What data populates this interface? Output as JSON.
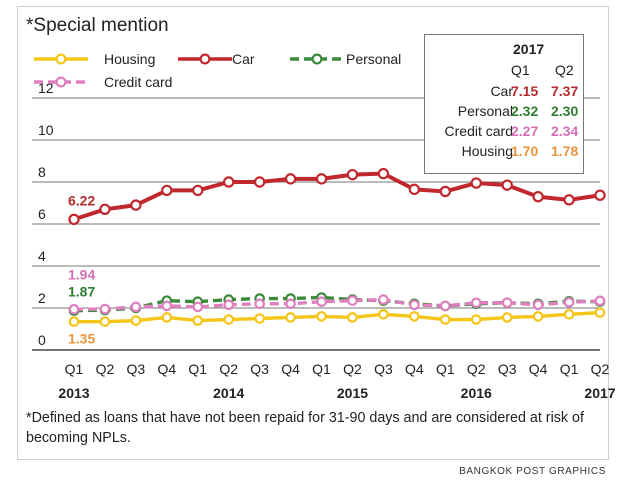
{
  "title": "*Special mention",
  "footnote": "*Defined as loans that have not been repaid for 31-90 days and are considered at risk of becoming NPLs.",
  "credit": "BANGKOK POST GRAPHICS",
  "colors": {
    "Housing": "#f5c518",
    "Car": "#c0282d",
    "Personal": "#3a8a3a",
    "Credit card": "#e07fc0"
  },
  "table": {
    "year": "2017",
    "cols": [
      "Q1",
      "Q2"
    ],
    "rows": [
      {
        "label": "Car",
        "q1": "7.15",
        "q2": "7.37",
        "color": "#b52a2e"
      },
      {
        "label": "Personal",
        "q1": "2.32",
        "q2": "2.30",
        "color": "#2e7d32"
      },
      {
        "label": "Credit card",
        "q1": "2.27",
        "q2": "2.34",
        "color": "#d66fb8"
      },
      {
        "label": "Housing",
        "q1": "1.70",
        "q2": "1.78",
        "color": "#e8963a"
      }
    ]
  },
  "chart_data": {
    "type": "line",
    "title": "*Special mention",
    "categories": [
      "Q1",
      "Q2",
      "Q3",
      "Q4",
      "Q1",
      "Q2",
      "Q3",
      "Q4",
      "Q1",
      "Q2",
      "Q3",
      "Q4",
      "Q1",
      "Q2",
      "Q3",
      "Q4",
      "Q1",
      "Q2"
    ],
    "years": [
      {
        "label": "2013",
        "index": 0
      },
      {
        "label": "2014",
        "index": 5
      },
      {
        "label": "2015",
        "index": 9
      },
      {
        "label": "2016",
        "index": 13
      },
      {
        "label": "2017",
        "index": 17
      }
    ],
    "ylim": [
      0,
      12
    ],
    "yticks": [
      "0",
      "2",
      "4",
      "6",
      "8",
      "10",
      "12"
    ],
    "grid": true,
    "legend_position": "top-left",
    "series": [
      {
        "name": "Housing",
        "color": "#f5c518",
        "style": "solid",
        "values": [
          1.35,
          1.35,
          1.4,
          1.55,
          1.4,
          1.45,
          1.5,
          1.55,
          1.6,
          1.55,
          1.7,
          1.6,
          1.45,
          1.45,
          1.55,
          1.6,
          1.7,
          1.78
        ]
      },
      {
        "name": "Car",
        "color": "#c0282d",
        "style": "solid",
        "values": [
          6.22,
          6.7,
          6.9,
          7.6,
          7.6,
          8.0,
          8.0,
          8.15,
          8.15,
          8.35,
          8.4,
          7.65,
          7.55,
          7.95,
          7.85,
          7.3,
          7.15,
          7.37
        ]
      },
      {
        "name": "Personal",
        "color": "#3a8a3a",
        "style": "dashed",
        "values": [
          1.87,
          1.9,
          2.0,
          2.35,
          2.3,
          2.4,
          2.45,
          2.45,
          2.5,
          2.4,
          2.35,
          2.2,
          2.1,
          2.2,
          2.25,
          2.2,
          2.32,
          2.3
        ]
      },
      {
        "name": "Credit card",
        "color": "#e07fc0",
        "style": "dashed",
        "values": [
          1.94,
          1.95,
          2.05,
          2.1,
          2.05,
          2.15,
          2.2,
          2.2,
          2.3,
          2.35,
          2.4,
          2.15,
          2.1,
          2.25,
          2.25,
          2.15,
          2.27,
          2.34
        ]
      }
    ],
    "annotations": [
      {
        "text": "6.22",
        "series": "Car",
        "index": 0
      },
      {
        "text": "1.94",
        "series": "Credit card",
        "index": 0
      },
      {
        "text": "1.87",
        "series": "Personal",
        "index": 0
      },
      {
        "text": "1.35",
        "series": "Housing",
        "index": 0
      }
    ]
  }
}
